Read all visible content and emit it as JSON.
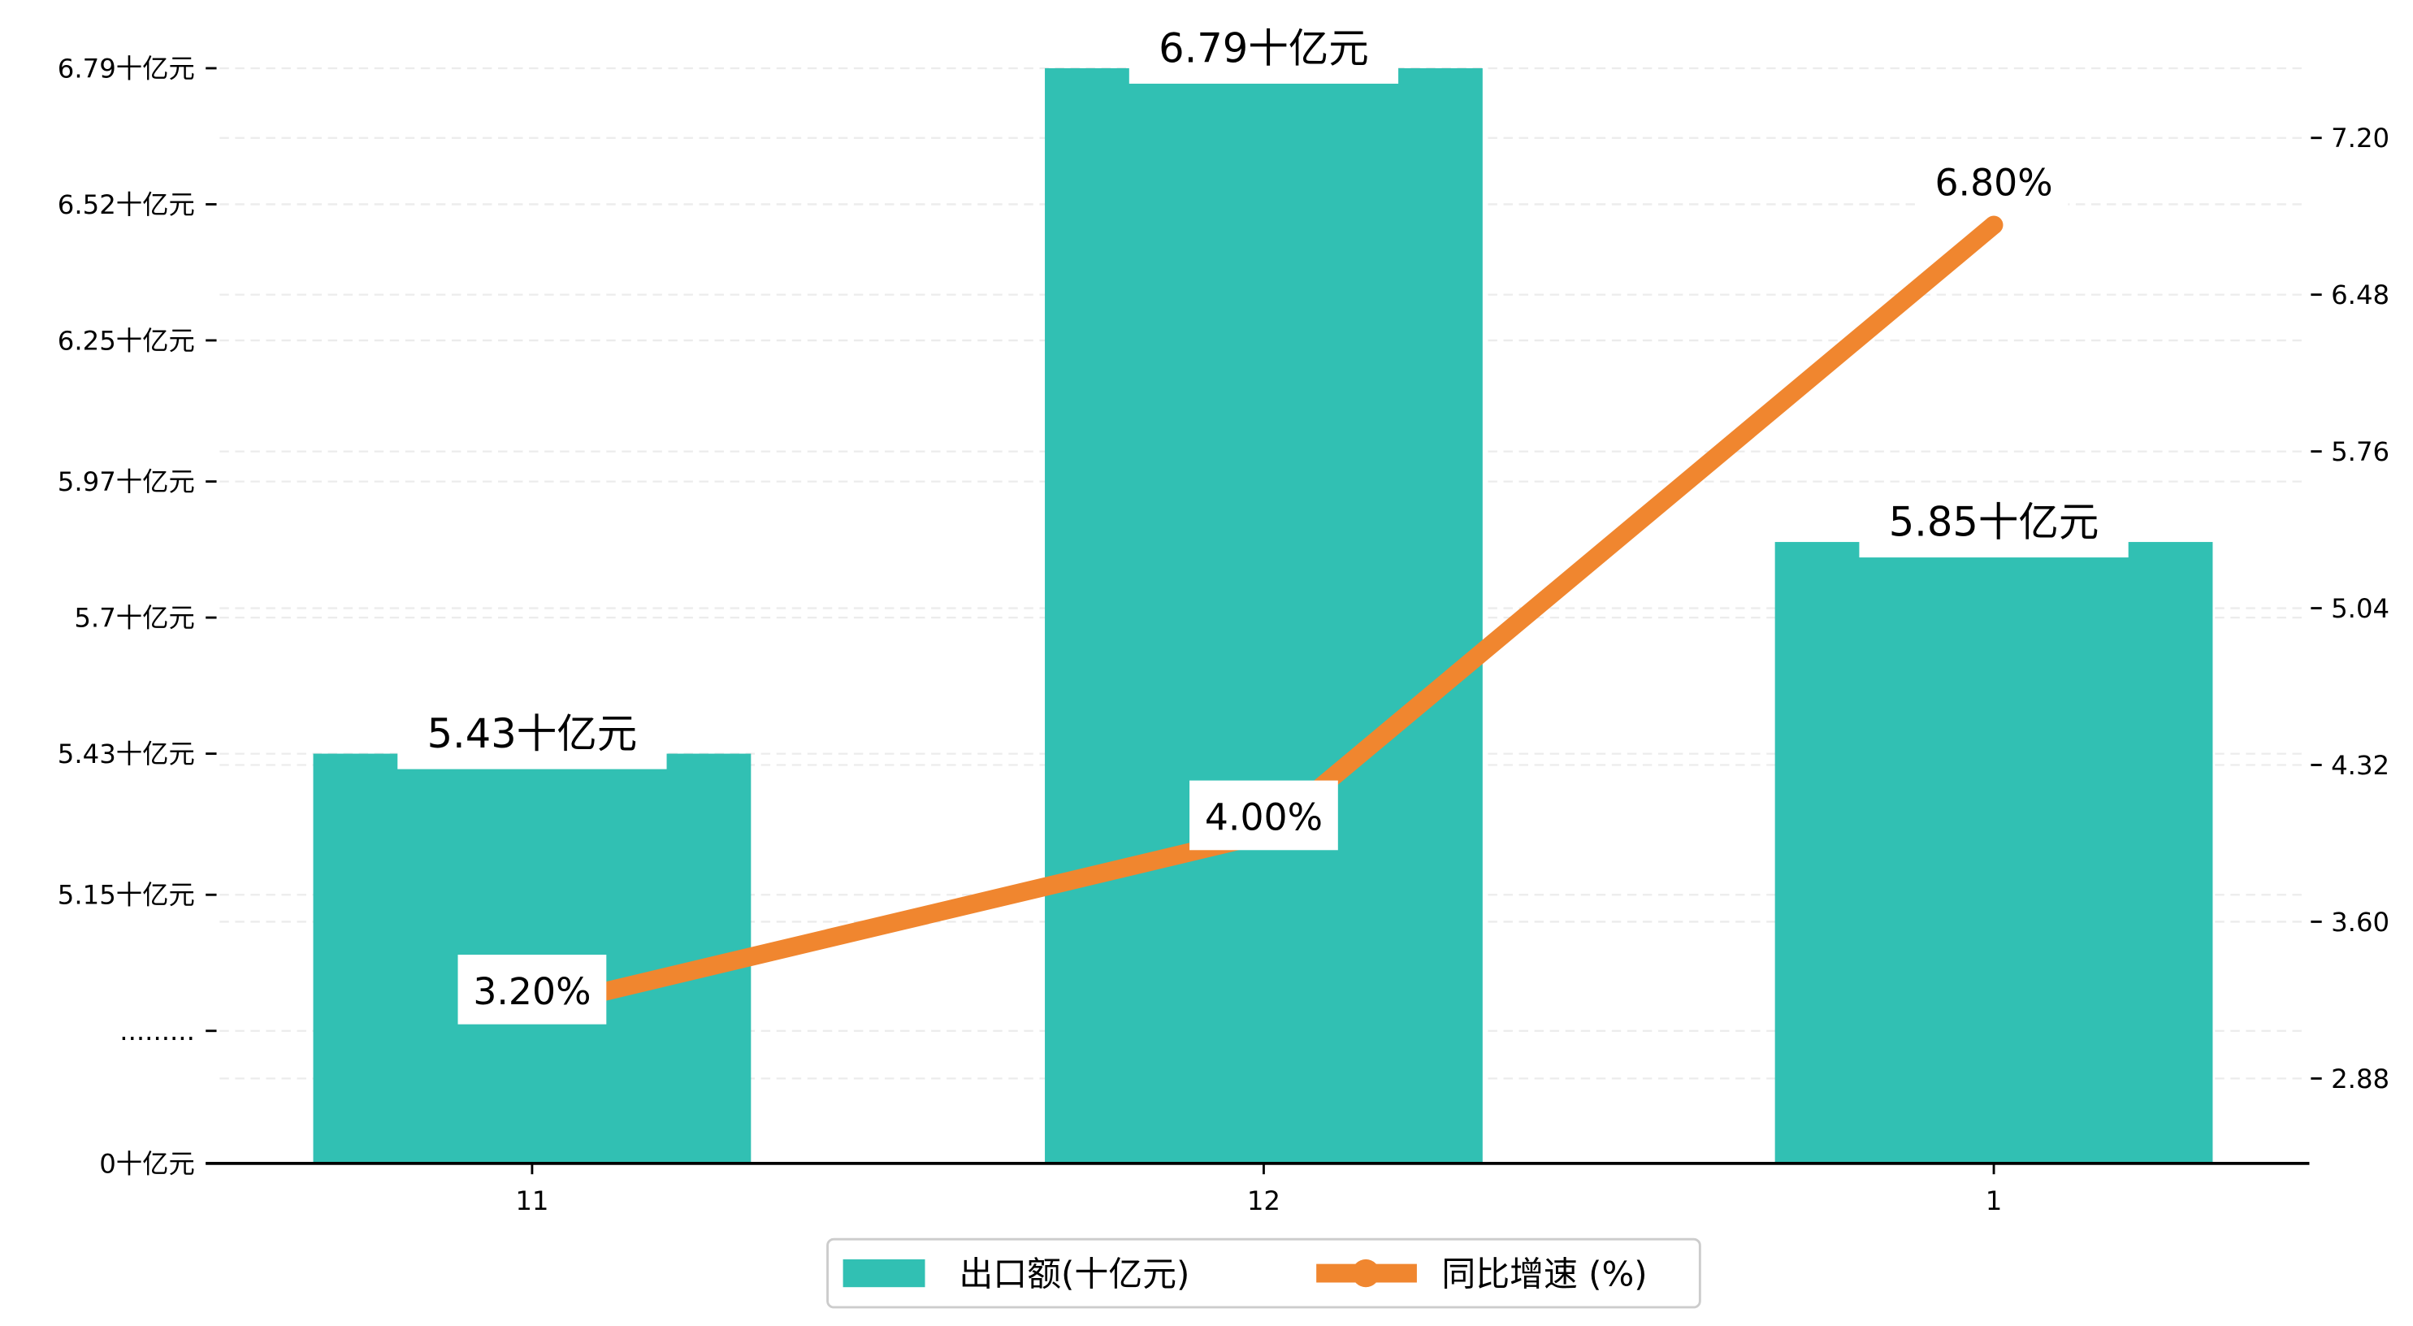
{
  "chart_data": {
    "type": "bar+line",
    "categories": [
      "11",
      "12",
      "1"
    ],
    "series": [
      {
        "name": "出口额(十亿元)",
        "type": "bar",
        "axis": "left",
        "values": [
          5.43,
          6.79,
          5.85
        ],
        "labels": [
          "5.43十亿元",
          "6.79十亿元",
          "5.85十亿元"
        ]
      },
      {
        "name": "同比增速 (%)",
        "type": "line",
        "axis": "right",
        "values": [
          3.2,
          4.0,
          6.8
        ],
        "labels": [
          "3.20%",
          "4.00%",
          "6.80%"
        ]
      }
    ],
    "left_axis": {
      "ticks": [
        6.79,
        6.52,
        6.25,
        5.97,
        5.7,
        5.43,
        5.15,
        4.88,
        4.617
      ],
      "tick_labels": [
        "6.79十亿元",
        "6.52十亿元",
        "6.25十亿元",
        "5.97十亿元",
        "5.7十亿元",
        "5.43十亿元",
        "5.15十亿元",
        ".........",
        "0十亿元"
      ],
      "ylim": [
        4.617,
        6.79
      ]
    },
    "right_axis": {
      "ticks": [
        7.2,
        6.48,
        5.76,
        5.04,
        4.32,
        3.6,
        2.88
      ],
      "tick_labels": [
        "7.20",
        "6.48",
        "5.76",
        "5.04",
        "4.32",
        "3.60",
        "2.88"
      ],
      "ylim": [
        2.49,
        7.52
      ]
    },
    "grid": true,
    "legend_position": "bottom-center",
    "colors": {
      "bar": "#31c0b3",
      "line": "#f0862f"
    }
  }
}
